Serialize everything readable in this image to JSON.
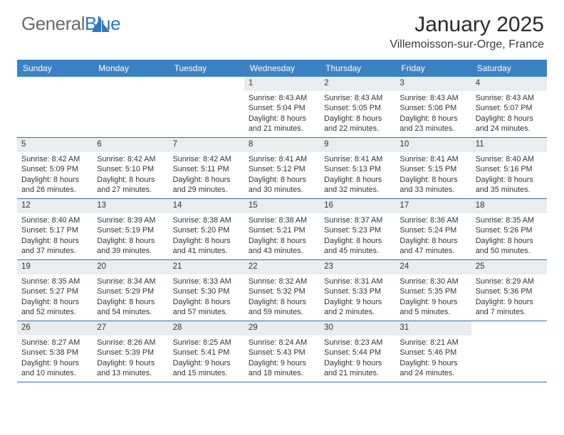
{
  "brand": {
    "name_part1": "General",
    "name_part2": "Blue"
  },
  "title": "January 2025",
  "location": "Villemoisson-sur-Orge, France",
  "colors": {
    "header_bg": "#3b82c4",
    "header_text": "#ffffff",
    "daynum_bg": "#e9edef",
    "cell_border": "#3b6fa0",
    "body_text": "#333333",
    "brand_gray": "#6a6a6a",
    "brand_blue": "#2f77bd"
  },
  "dayHeaders": [
    "Sunday",
    "Monday",
    "Tuesday",
    "Wednesday",
    "Thursday",
    "Friday",
    "Saturday"
  ],
  "layout": {
    "columns": 7,
    "rows": 5,
    "leading_blanks": 3
  },
  "days": [
    {
      "n": 1,
      "sunrise": "8:43 AM",
      "sunset": "5:04 PM",
      "daylight": "8 hours and 21 minutes."
    },
    {
      "n": 2,
      "sunrise": "8:43 AM",
      "sunset": "5:05 PM",
      "daylight": "8 hours and 22 minutes."
    },
    {
      "n": 3,
      "sunrise": "8:43 AM",
      "sunset": "5:06 PM",
      "daylight": "8 hours and 23 minutes."
    },
    {
      "n": 4,
      "sunrise": "8:43 AM",
      "sunset": "5:07 PM",
      "daylight": "8 hours and 24 minutes."
    },
    {
      "n": 5,
      "sunrise": "8:42 AM",
      "sunset": "5:09 PM",
      "daylight": "8 hours and 26 minutes."
    },
    {
      "n": 6,
      "sunrise": "8:42 AM",
      "sunset": "5:10 PM",
      "daylight": "8 hours and 27 minutes."
    },
    {
      "n": 7,
      "sunrise": "8:42 AM",
      "sunset": "5:11 PM",
      "daylight": "8 hours and 29 minutes."
    },
    {
      "n": 8,
      "sunrise": "8:41 AM",
      "sunset": "5:12 PM",
      "daylight": "8 hours and 30 minutes."
    },
    {
      "n": 9,
      "sunrise": "8:41 AM",
      "sunset": "5:13 PM",
      "daylight": "8 hours and 32 minutes."
    },
    {
      "n": 10,
      "sunrise": "8:41 AM",
      "sunset": "5:15 PM",
      "daylight": "8 hours and 33 minutes."
    },
    {
      "n": 11,
      "sunrise": "8:40 AM",
      "sunset": "5:16 PM",
      "daylight": "8 hours and 35 minutes."
    },
    {
      "n": 12,
      "sunrise": "8:40 AM",
      "sunset": "5:17 PM",
      "daylight": "8 hours and 37 minutes."
    },
    {
      "n": 13,
      "sunrise": "8:39 AM",
      "sunset": "5:19 PM",
      "daylight": "8 hours and 39 minutes."
    },
    {
      "n": 14,
      "sunrise": "8:38 AM",
      "sunset": "5:20 PM",
      "daylight": "8 hours and 41 minutes."
    },
    {
      "n": 15,
      "sunrise": "8:38 AM",
      "sunset": "5:21 PM",
      "daylight": "8 hours and 43 minutes."
    },
    {
      "n": 16,
      "sunrise": "8:37 AM",
      "sunset": "5:23 PM",
      "daylight": "8 hours and 45 minutes."
    },
    {
      "n": 17,
      "sunrise": "8:36 AM",
      "sunset": "5:24 PM",
      "daylight": "8 hours and 47 minutes."
    },
    {
      "n": 18,
      "sunrise": "8:35 AM",
      "sunset": "5:26 PM",
      "daylight": "8 hours and 50 minutes."
    },
    {
      "n": 19,
      "sunrise": "8:35 AM",
      "sunset": "5:27 PM",
      "daylight": "8 hours and 52 minutes."
    },
    {
      "n": 20,
      "sunrise": "8:34 AM",
      "sunset": "5:29 PM",
      "daylight": "8 hours and 54 minutes."
    },
    {
      "n": 21,
      "sunrise": "8:33 AM",
      "sunset": "5:30 PM",
      "daylight": "8 hours and 57 minutes."
    },
    {
      "n": 22,
      "sunrise": "8:32 AM",
      "sunset": "5:32 PM",
      "daylight": "8 hours and 59 minutes."
    },
    {
      "n": 23,
      "sunrise": "8:31 AM",
      "sunset": "5:33 PM",
      "daylight": "9 hours and 2 minutes."
    },
    {
      "n": 24,
      "sunrise": "8:30 AM",
      "sunset": "5:35 PM",
      "daylight": "9 hours and 5 minutes."
    },
    {
      "n": 25,
      "sunrise": "8:29 AM",
      "sunset": "5:36 PM",
      "daylight": "9 hours and 7 minutes."
    },
    {
      "n": 26,
      "sunrise": "8:27 AM",
      "sunset": "5:38 PM",
      "daylight": "9 hours and 10 minutes."
    },
    {
      "n": 27,
      "sunrise": "8:26 AM",
      "sunset": "5:39 PM",
      "daylight": "9 hours and 13 minutes."
    },
    {
      "n": 28,
      "sunrise": "8:25 AM",
      "sunset": "5:41 PM",
      "daylight": "9 hours and 15 minutes."
    },
    {
      "n": 29,
      "sunrise": "8:24 AM",
      "sunset": "5:43 PM",
      "daylight": "9 hours and 18 minutes."
    },
    {
      "n": 30,
      "sunrise": "8:23 AM",
      "sunset": "5:44 PM",
      "daylight": "9 hours and 21 minutes."
    },
    {
      "n": 31,
      "sunrise": "8:21 AM",
      "sunset": "5:46 PM",
      "daylight": "9 hours and 24 minutes."
    }
  ],
  "labels": {
    "sunrise": "Sunrise:",
    "sunset": "Sunset:",
    "daylight": "Daylight:"
  }
}
